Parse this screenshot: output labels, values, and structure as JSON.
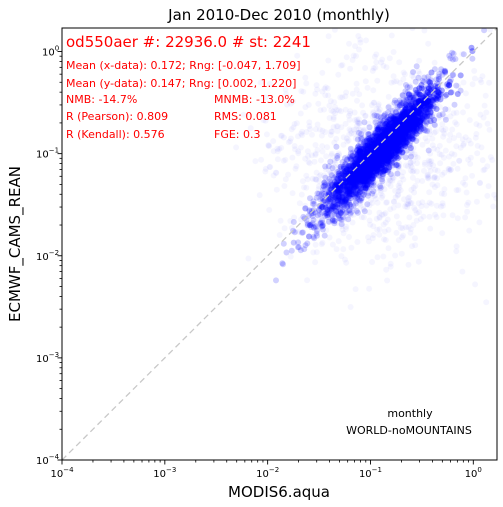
{
  "chart_data": {
    "type": "scatter",
    "title": "Jan 2010-Dec 2010 (monthly)",
    "xlabel": "MODIS6.aqua",
    "ylabel": "ECMWF_CAMS_REAN",
    "x_scale": "log",
    "y_scale": "log",
    "xlim": [
      0.0001,
      1.7
    ],
    "ylim": [
      0.0001,
      1.7
    ],
    "x_ticks": [
      {
        "value": 0.0001,
        "base": "10",
        "exp": "−4"
      },
      {
        "value": 0.001,
        "base": "10",
        "exp": "−3"
      },
      {
        "value": 0.01,
        "base": "10",
        "exp": "−2"
      },
      {
        "value": 0.1,
        "base": "10",
        "exp": "−1"
      },
      {
        "value": 1,
        "base": "10",
        "exp": "0"
      }
    ],
    "y_ticks": [
      {
        "value": 0.0001,
        "base": "10",
        "exp": "−4"
      },
      {
        "value": 0.001,
        "base": "10",
        "exp": "−3"
      },
      {
        "value": 0.01,
        "base": "10",
        "exp": "−2"
      },
      {
        "value": 0.1,
        "base": "10",
        "exp": "−1"
      },
      {
        "value": 1,
        "base": "10",
        "exp": "0"
      }
    ],
    "grid": false,
    "reference_line": "1:1",
    "point_color": "#0000ff",
    "annotation_color": "#ff0000",
    "headline": "od550aer #: 22936.0 # st: 2241",
    "stats": [
      {
        "text": "Mean (x-data): 0.172; Rng: [-0.047, 1.709]",
        "col": 0,
        "row": 0
      },
      {
        "text": "Mean (y-data): 0.147; Rng: [0.002, 1.220]",
        "col": 0,
        "row": 1
      },
      {
        "text": "NMB: -14.7%",
        "col": 0,
        "row": 2
      },
      {
        "text": "MNMB: -13.0%",
        "col": 1,
        "row": 2
      },
      {
        "text": "R (Pearson): 0.809",
        "col": 0,
        "row": 3
      },
      {
        "text": "RMS: 0.081",
        "col": 1,
        "row": 3
      },
      {
        "text": "R (Kendall): 0.576",
        "col": 0,
        "row": 4
      },
      {
        "text": "FGE: 0.3",
        "col": 1,
        "row": 4
      }
    ],
    "footer_lines": [
      "monthly",
      "WORLD-noMOUNTAINS"
    ],
    "summary": {
      "n_points": 22936,
      "x_mean": 0.172,
      "y_mean": 0.147
    }
  }
}
